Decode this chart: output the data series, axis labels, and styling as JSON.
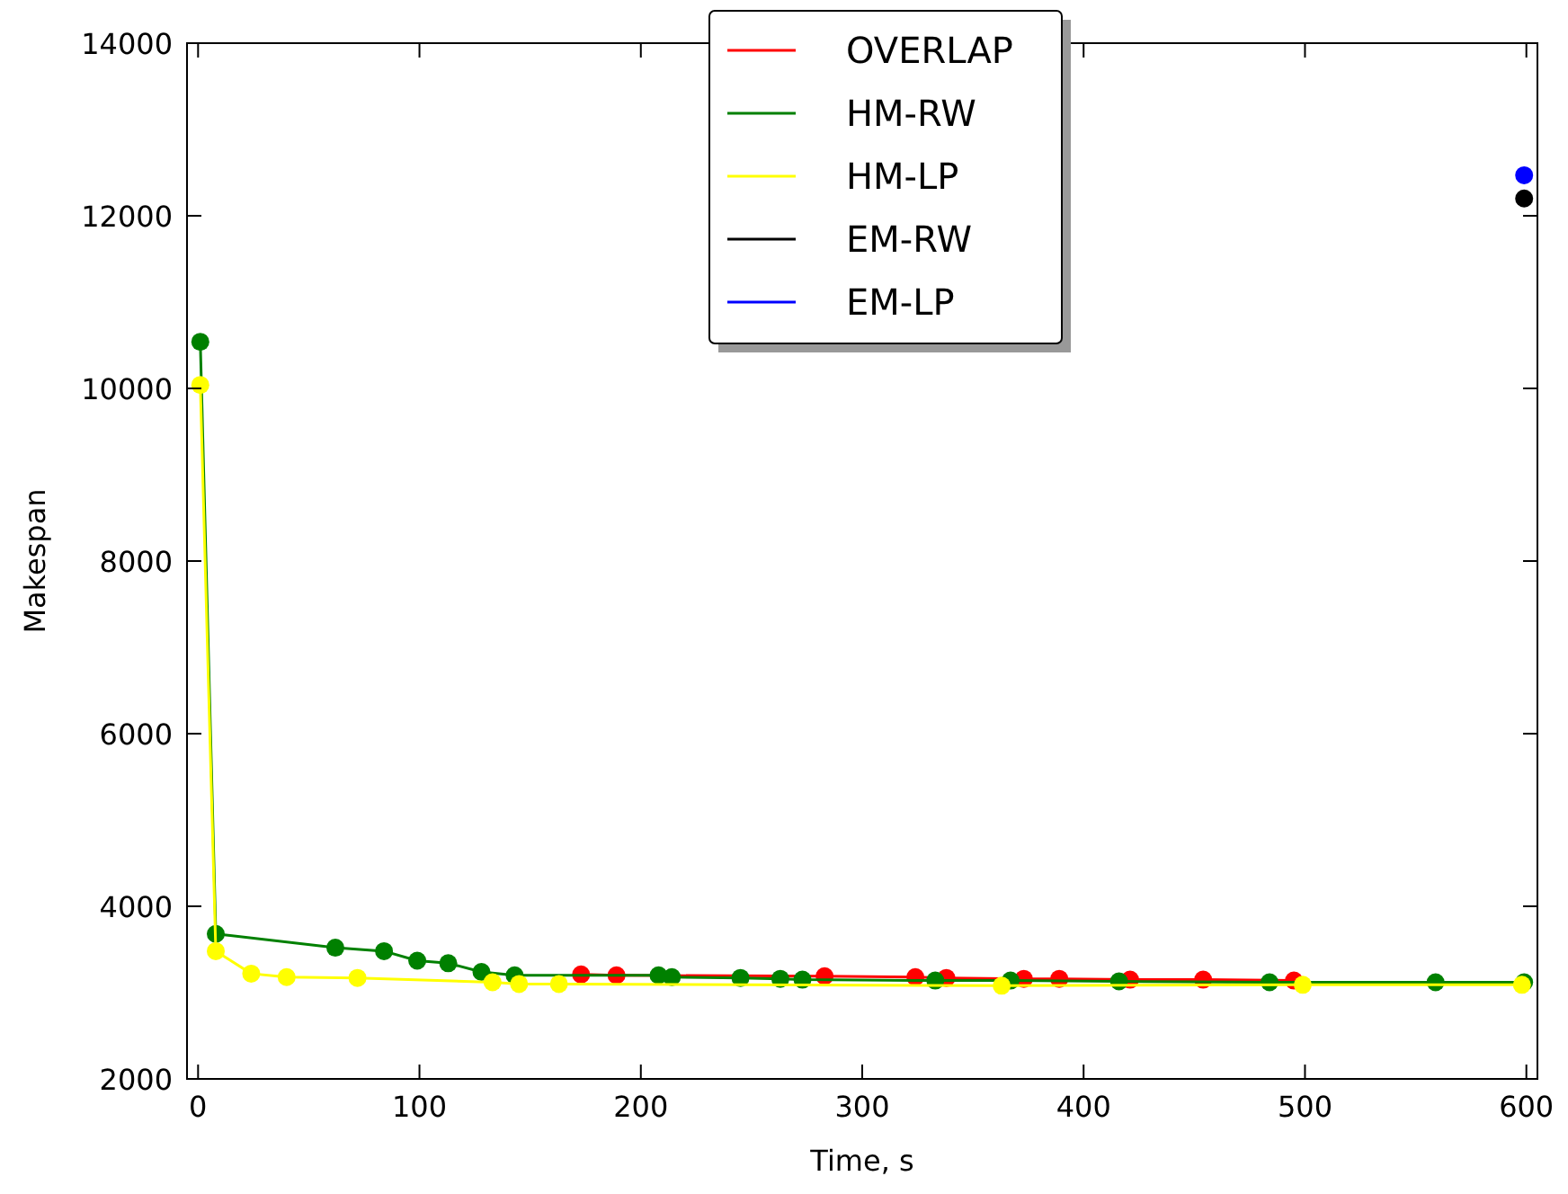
{
  "chart_data": {
    "type": "line",
    "xlabel": "Time, s",
    "ylabel": "Makespan",
    "xlim": [
      -5,
      605
    ],
    "ylim": [
      2000,
      14000
    ],
    "xticks": [
      0,
      100,
      200,
      300,
      400,
      500,
      600
    ],
    "yticks": [
      2000,
      4000,
      6000,
      8000,
      10000,
      12000,
      14000
    ],
    "grid": false,
    "legend": "top",
    "marker": "circle",
    "line_style": "solid",
    "series": [
      {
        "name": "OVERLAP",
        "color": "#ff0000",
        "x": [
          173,
          189,
          283,
          324,
          338,
          373,
          389,
          421,
          454,
          495
        ],
        "values": [
          3210,
          3200,
          3190,
          3180,
          3170,
          3160,
          3160,
          3150,
          3150,
          3140
        ]
      },
      {
        "name": "HM-RW",
        "color": "#008000",
        "x": [
          1,
          8,
          62,
          84,
          99,
          113,
          128,
          143,
          208,
          214,
          245,
          263,
          273,
          333,
          367,
          416,
          484,
          559,
          599
        ],
        "values": [
          10540,
          3680,
          3520,
          3480,
          3370,
          3340,
          3240,
          3200,
          3200,
          3180,
          3170,
          3160,
          3150,
          3140,
          3140,
          3130,
          3120,
          3120,
          3120
        ]
      },
      {
        "name": "HM-LP",
        "color": "#ffff00",
        "x": [
          1,
          8,
          24,
          40,
          72,
          133,
          145,
          163,
          363,
          499,
          598
        ],
        "values": [
          10040,
          3480,
          3220,
          3180,
          3170,
          3120,
          3100,
          3100,
          3080,
          3090,
          3090
        ]
      },
      {
        "name": "EM-RW",
        "color": "#000000",
        "x": [
          599
        ],
        "values": [
          12200
        ]
      },
      {
        "name": "EM-LP",
        "color": "#0000ff",
        "x": [
          599
        ],
        "values": [
          12470
        ]
      }
    ]
  }
}
